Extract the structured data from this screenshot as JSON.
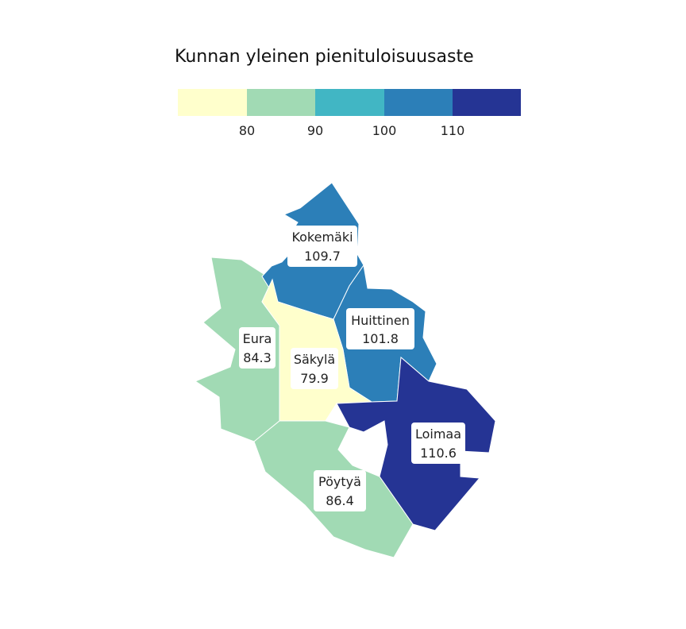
{
  "legend": {
    "title": "Kunnan yleinen pienituloisuusaste",
    "ticks": [
      "80",
      "90",
      "100",
      "110"
    ],
    "colors": [
      "#ffffcc",
      "#a1dab4",
      "#41b6c4",
      "#2c7fb8",
      "#253494"
    ]
  },
  "regions": [
    {
      "name": "Kokemäki",
      "value": "109.7",
      "color": "#2c7fb8"
    },
    {
      "name": "Huittinen",
      "value": "101.8",
      "color": "#2c7fb8"
    },
    {
      "name": "Eura",
      "value": "84.3",
      "color": "#a1dab4"
    },
    {
      "name": "Säkylä",
      "value": "79.9",
      "color": "#ffffcc"
    },
    {
      "name": "Loimaa",
      "value": "110.6",
      "color": "#253494"
    },
    {
      "name": "Pöytyä",
      "value": "86.4",
      "color": "#a1dab4"
    }
  ]
}
